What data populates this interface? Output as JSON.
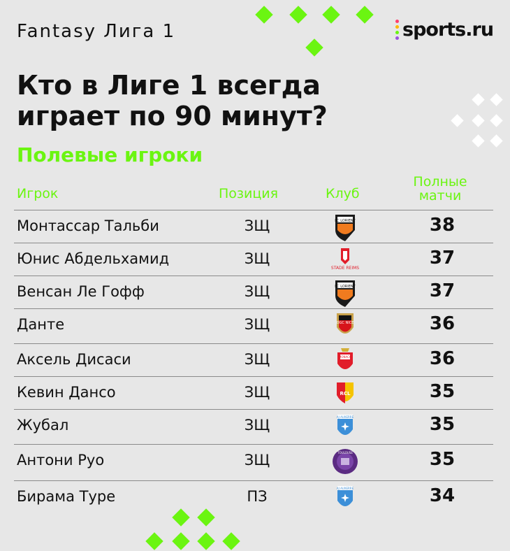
{
  "header": {
    "kicker": "Fantasy Лига 1",
    "brand": "sports.ru",
    "title_line1": "Кто в Лиге 1 всегда",
    "title_line2": "играет по 90 минут?",
    "subtitle": "Полевые игроки"
  },
  "table": {
    "col_player": "Игрок",
    "col_position": "Позиция",
    "col_club": "Клуб",
    "col_full_line1": "Полные",
    "col_full_line2": "матчи",
    "rows": [
      {
        "player": "Монтассар Тальби",
        "position": "ЗЩ",
        "club": "Lorient",
        "club_text": "FC LORIENT",
        "full": "38"
      },
      {
        "player": "Юнис Абдельхамид",
        "position": "ЗЩ",
        "club": "Reims",
        "club_text": "STADE REIMS",
        "full": "37"
      },
      {
        "player": "Венсан Ле Гофф",
        "position": "ЗЩ",
        "club": "Lorient",
        "club_text": "FC LORIENT",
        "full": "37"
      },
      {
        "player": "Данте",
        "position": "ЗЩ",
        "club": "Nice",
        "club_text": "OGC NICE",
        "full": "36"
      },
      {
        "player": "Аксель Дисаси",
        "position": "ЗЩ",
        "club": "Monaco",
        "club_text": "MONACO",
        "full": "36"
      },
      {
        "player": "Кевин Дансо",
        "position": "ЗЩ",
        "club": "Lens",
        "club_text": "RCL",
        "full": "35"
      },
      {
        "player": "Жубал",
        "position": "ЗЩ",
        "club": "Auxerre",
        "club_text": "AJ AUXERRE",
        "full": "35"
      },
      {
        "player": "Антони Руо",
        "position": "ЗЩ",
        "club": "Toulouse",
        "club_text": "TOULOUSE",
        "full": "35"
      },
      {
        "player": "Бирама Туре",
        "position": "ПЗ",
        "club": "Auxerre",
        "club_text": "AJ AUXERRE",
        "full": "34"
      }
    ]
  },
  "colors": {
    "accent_green": "#6bf511",
    "background": "#e7e7e7",
    "text": "#111111"
  },
  "icons": [
    "diamond-decoration",
    "sports-ru-logo",
    "club-crest"
  ]
}
